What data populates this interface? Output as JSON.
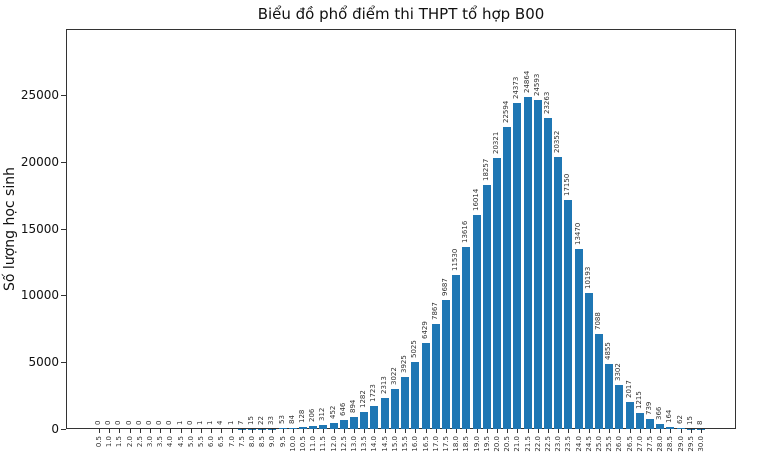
{
  "chart_data": {
    "type": "bar",
    "title": "Biểu đồ phổ điểm thi THPT tổ hợp B00",
    "xlabel": "",
    "ylabel": "Số lượng học sinh",
    "ylim": [
      0,
      29940
    ],
    "yticks": [
      0,
      5000,
      10000,
      15000,
      20000,
      25000
    ],
    "grid": false,
    "legend": null,
    "bar_color": "#1f77b4",
    "categories": [
      "0.5",
      "1.0",
      "1.5",
      "2.0",
      "2.5",
      "3.0",
      "3.5",
      "4.0",
      "4.5",
      "5.0",
      "5.5",
      "6.0",
      "6.5",
      "7.0",
      "7.5",
      "8.0",
      "8.5",
      "9.0",
      "9.5",
      "10.0",
      "10.5",
      "11.0",
      "11.5",
      "12.0",
      "12.5",
      "13.0",
      "13.5",
      "14.0",
      "14.5",
      "15.0",
      "15.5",
      "16.0",
      "16.5",
      "17.0",
      "17.5",
      "18.0",
      "18.5",
      "19.0",
      "19.5",
      "20.0",
      "20.5",
      "21.0",
      "21.5",
      "22.0",
      "22.5",
      "23.0",
      "23.5",
      "24.0",
      "24.5",
      "25.0",
      "25.5",
      "26.0",
      "26.5",
      "27.0",
      "27.5",
      "28.0",
      "28.5",
      "29.0",
      "29.5",
      "30.0"
    ],
    "values": [
      0,
      0,
      0,
      0,
      0,
      0,
      0,
      0,
      1,
      0,
      1,
      1,
      4,
      1,
      7,
      15,
      22,
      33,
      53,
      84,
      128,
      206,
      312,
      452,
      646,
      894,
      1282,
      1723,
      2313,
      3022,
      3925,
      5025,
      6429,
      7867,
      9687,
      11530,
      13616,
      16014,
      18257,
      20321,
      22594,
      24373,
      24864,
      24593,
      23263,
      20352,
      17150,
      13470,
      10193,
      7088,
      4855,
      3302,
      2017,
      1215,
      739,
      366,
      164,
      62,
      15,
      8
    ]
  }
}
